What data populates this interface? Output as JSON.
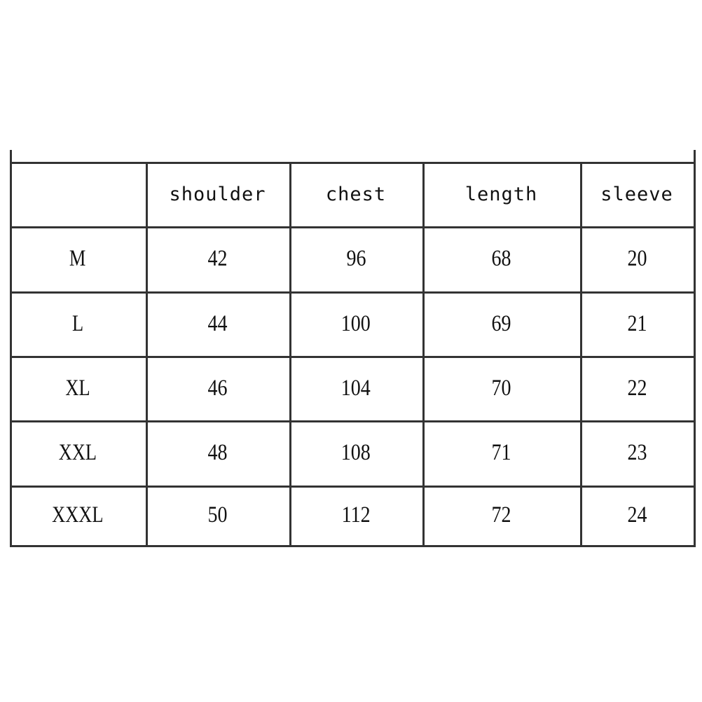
{
  "table": {
    "headers": [
      "",
      "shoulder",
      "chest",
      "length",
      "sleeve"
    ],
    "rows": [
      [
        "M",
        "42",
        "96",
        "68",
        "20"
      ],
      [
        "L",
        "44",
        "100",
        "69",
        "21"
      ],
      [
        "XL",
        "46",
        "104",
        "70",
        "22"
      ],
      [
        "XXL",
        "48",
        "108",
        "71",
        "23"
      ],
      [
        "XXXL",
        "50",
        "112",
        "72",
        "24"
      ]
    ]
  }
}
